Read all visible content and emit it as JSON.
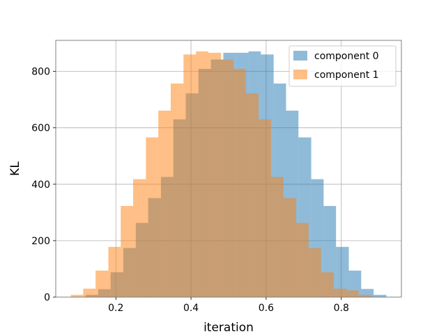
{
  "chart_data": {
    "type": "bar",
    "xlabel": "iteration",
    "ylabel": "KL",
    "xlim": [
      0.04,
      0.96
    ],
    "ylim": [
      0,
      910
    ],
    "x_ticks": [
      0.2,
      0.4,
      0.6,
      0.8
    ],
    "x_tick_labels": [
      "0.2",
      "0.4",
      "0.6",
      "0.8"
    ],
    "y_ticks": [
      0,
      200,
      400,
      600,
      800
    ],
    "y_tick_labels": [
      "0",
      "200",
      "400",
      "600",
      "800"
    ],
    "grid": true,
    "legend_position": "top-right",
    "series": [
      {
        "name": "component 0",
        "color": "#1f77b4",
        "alpha": 0.5,
        "bins": [
          {
            "x0": 0.12,
            "x1": 0.153,
            "value": 8
          },
          {
            "x0": 0.153,
            "x1": 0.186,
            "value": 28
          },
          {
            "x0": 0.186,
            "x1": 0.22,
            "value": 88
          },
          {
            "x0": 0.22,
            "x1": 0.253,
            "value": 174
          },
          {
            "x0": 0.253,
            "x1": 0.286,
            "value": 263
          },
          {
            "x0": 0.286,
            "x1": 0.32,
            "value": 351
          },
          {
            "x0": 0.32,
            "x1": 0.353,
            "value": 426
          },
          {
            "x0": 0.353,
            "x1": 0.386,
            "value": 630
          },
          {
            "x0": 0.386,
            "x1": 0.42,
            "value": 722
          },
          {
            "x0": 0.42,
            "x1": 0.453,
            "value": 809
          },
          {
            "x0": 0.453,
            "x1": 0.486,
            "value": 842
          },
          {
            "x0": 0.486,
            "x1": 0.52,
            "value": 866
          },
          {
            "x0": 0.52,
            "x1": 0.553,
            "value": 866
          },
          {
            "x0": 0.553,
            "x1": 0.586,
            "value": 871
          },
          {
            "x0": 0.586,
            "x1": 0.62,
            "value": 860
          },
          {
            "x0": 0.62,
            "x1": 0.653,
            "value": 757
          },
          {
            "x0": 0.653,
            "x1": 0.686,
            "value": 661
          },
          {
            "x0": 0.686,
            "x1": 0.72,
            "value": 566
          },
          {
            "x0": 0.72,
            "x1": 0.753,
            "value": 418
          },
          {
            "x0": 0.753,
            "x1": 0.786,
            "value": 323
          },
          {
            "x0": 0.786,
            "x1": 0.82,
            "value": 178
          },
          {
            "x0": 0.82,
            "x1": 0.853,
            "value": 94
          },
          {
            "x0": 0.853,
            "x1": 0.886,
            "value": 29
          },
          {
            "x0": 0.886,
            "x1": 0.92,
            "value": 8
          }
        ]
      },
      {
        "name": "component 1",
        "color": "#ff7f0e",
        "alpha": 0.5,
        "bins": [
          {
            "x0": 0.08,
            "x1": 0.113,
            "value": 8
          },
          {
            "x0": 0.113,
            "x1": 0.146,
            "value": 30
          },
          {
            "x0": 0.146,
            "x1": 0.18,
            "value": 94
          },
          {
            "x0": 0.18,
            "x1": 0.213,
            "value": 178
          },
          {
            "x0": 0.213,
            "x1": 0.246,
            "value": 323
          },
          {
            "x0": 0.246,
            "x1": 0.28,
            "value": 418
          },
          {
            "x0": 0.28,
            "x1": 0.313,
            "value": 566
          },
          {
            "x0": 0.313,
            "x1": 0.346,
            "value": 661
          },
          {
            "x0": 0.346,
            "x1": 0.38,
            "value": 757
          },
          {
            "x0": 0.38,
            "x1": 0.413,
            "value": 860
          },
          {
            "x0": 0.413,
            "x1": 0.446,
            "value": 871
          },
          {
            "x0": 0.446,
            "x1": 0.48,
            "value": 866
          },
          {
            "x0": 0.48,
            "x1": 0.513,
            "value": 842
          },
          {
            "x0": 0.513,
            "x1": 0.546,
            "value": 809
          },
          {
            "x0": 0.546,
            "x1": 0.58,
            "value": 722
          },
          {
            "x0": 0.58,
            "x1": 0.613,
            "value": 630
          },
          {
            "x0": 0.613,
            "x1": 0.646,
            "value": 426
          },
          {
            "x0": 0.646,
            "x1": 0.68,
            "value": 351
          },
          {
            "x0": 0.68,
            "x1": 0.713,
            "value": 263
          },
          {
            "x0": 0.713,
            "x1": 0.746,
            "value": 174
          },
          {
            "x0": 0.746,
            "x1": 0.78,
            "value": 88
          },
          {
            "x0": 0.78,
            "x1": 0.813,
            "value": 30
          },
          {
            "x0": 0.813,
            "x1": 0.846,
            "value": 24
          },
          {
            "x0": 0.846,
            "x1": 0.88,
            "value": 8
          }
        ]
      }
    ]
  }
}
